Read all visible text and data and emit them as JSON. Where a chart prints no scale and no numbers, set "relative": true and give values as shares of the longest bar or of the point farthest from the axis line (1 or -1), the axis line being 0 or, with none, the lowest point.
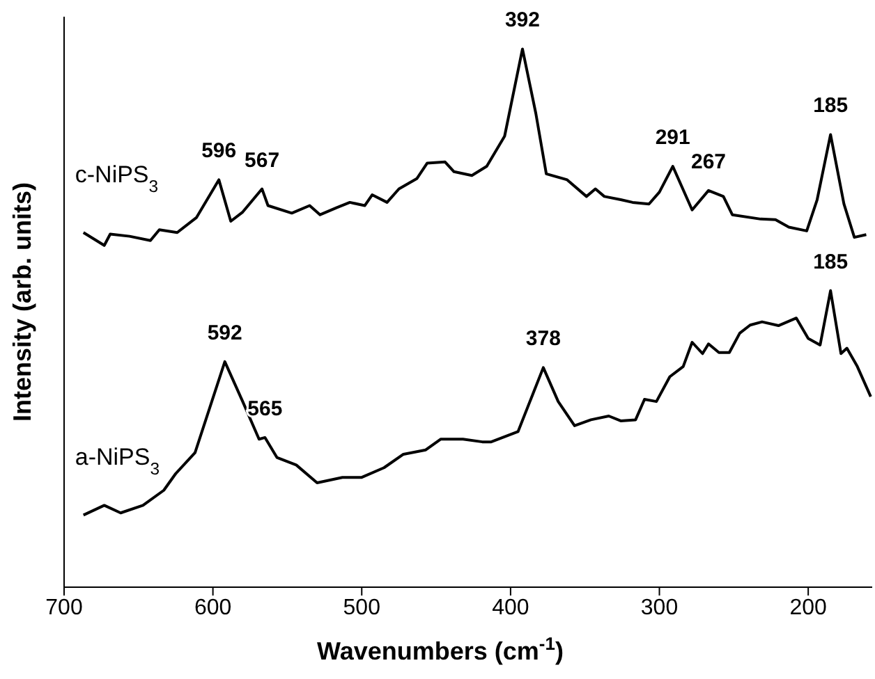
{
  "chart_data": {
    "type": "line",
    "relative": true,
    "xlabel": "Wavenumbers (cm$^{-1}$)",
    "ylabel": "Intensity (arb. units)",
    "xlim": [
      700,
      157
    ],
    "xticks": [
      700,
      600,
      500,
      400,
      300,
      200
    ],
    "legend": false,
    "grid": false,
    "marker": "none",
    "line_style": "solid",
    "series": [
      {
        "name": "c-NiPS$_{3}$",
        "color": "#000000",
        "x": [
          687,
          673,
          669,
          656,
          642,
          636,
          624,
          611,
          596,
          588,
          580,
          567,
          563,
          547,
          535,
          528,
          517,
          508,
          498,
          493,
          483,
          475,
          463,
          456,
          444,
          438,
          426,
          416,
          404,
          392,
          383,
          376,
          362,
          349,
          343,
          337,
          326,
          318,
          307,
          300,
          291,
          278,
          267,
          257,
          251,
          232,
          222,
          213,
          201,
          194,
          185,
          176,
          169,
          161
        ],
        "values": [
          0.659,
          0.635,
          0.656,
          0.652,
          0.644,
          0.664,
          0.659,
          0.687,
          0.757,
          0.68,
          0.697,
          0.74,
          0.709,
          0.695,
          0.709,
          0.692,
          0.705,
          0.715,
          0.709,
          0.729,
          0.715,
          0.74,
          0.759,
          0.788,
          0.79,
          0.772,
          0.765,
          0.782,
          0.838,
          1.0,
          0.88,
          0.768,
          0.757,
          0.726,
          0.74,
          0.726,
          0.72,
          0.715,
          0.712,
          0.734,
          0.782,
          0.701,
          0.737,
          0.726,
          0.692,
          0.684,
          0.683,
          0.669,
          0.662,
          0.72,
          0.841,
          0.712,
          0.65,
          0.655
        ]
      },
      {
        "name": "a-NiPS$_{3}$",
        "color": "#000000",
        "x": [
          687,
          673,
          662,
          647,
          633,
          625,
          612,
          592,
          580,
          569,
          565,
          557,
          544,
          530,
          513,
          500,
          485,
          472,
          457,
          447,
          432,
          419,
          413,
          395,
          378,
          368,
          357,
          346,
          334,
          326,
          316,
          310,
          302,
          293,
          284,
          278,
          271,
          267,
          260,
          253,
          246,
          239,
          231,
          220,
          208,
          200,
          192,
          185,
          178,
          174,
          167,
          158
        ],
        "values": [
          0.134,
          0.152,
          0.138,
          0.152,
          0.18,
          0.211,
          0.25,
          0.419,
          0.345,
          0.275,
          0.278,
          0.241,
          0.227,
          0.194,
          0.204,
          0.204,
          0.222,
          0.247,
          0.255,
          0.275,
          0.275,
          0.27,
          0.27,
          0.289,
          0.408,
          0.345,
          0.3,
          0.311,
          0.318,
          0.309,
          0.311,
          0.349,
          0.345,
          0.391,
          0.41,
          0.455,
          0.434,
          0.452,
          0.436,
          0.436,
          0.472,
          0.487,
          0.493,
          0.486,
          0.5,
          0.462,
          0.45,
          0.551,
          0.434,
          0.444,
          0.41,
          0.354
        ]
      }
    ],
    "annotations": [
      {
        "text": "596",
        "x": 596,
        "y": 0.757
      },
      {
        "text": "567",
        "x": 567,
        "y": 0.74
      },
      {
        "text": "392",
        "x": 392,
        "y": 1.0
      },
      {
        "text": "291",
        "x": 291,
        "y": 0.782
      },
      {
        "text": "267",
        "x": 267,
        "y": 0.737
      },
      {
        "text": "185",
        "x": 185,
        "y": 0.841
      },
      {
        "text": "592",
        "x": 592,
        "y": 0.419
      },
      {
        "text": "565",
        "x": 565,
        "y": 0.278
      },
      {
        "text": "378",
        "x": 378,
        "y": 0.408
      },
      {
        "text": "185",
        "x": 185,
        "y": 0.551
      }
    ]
  }
}
